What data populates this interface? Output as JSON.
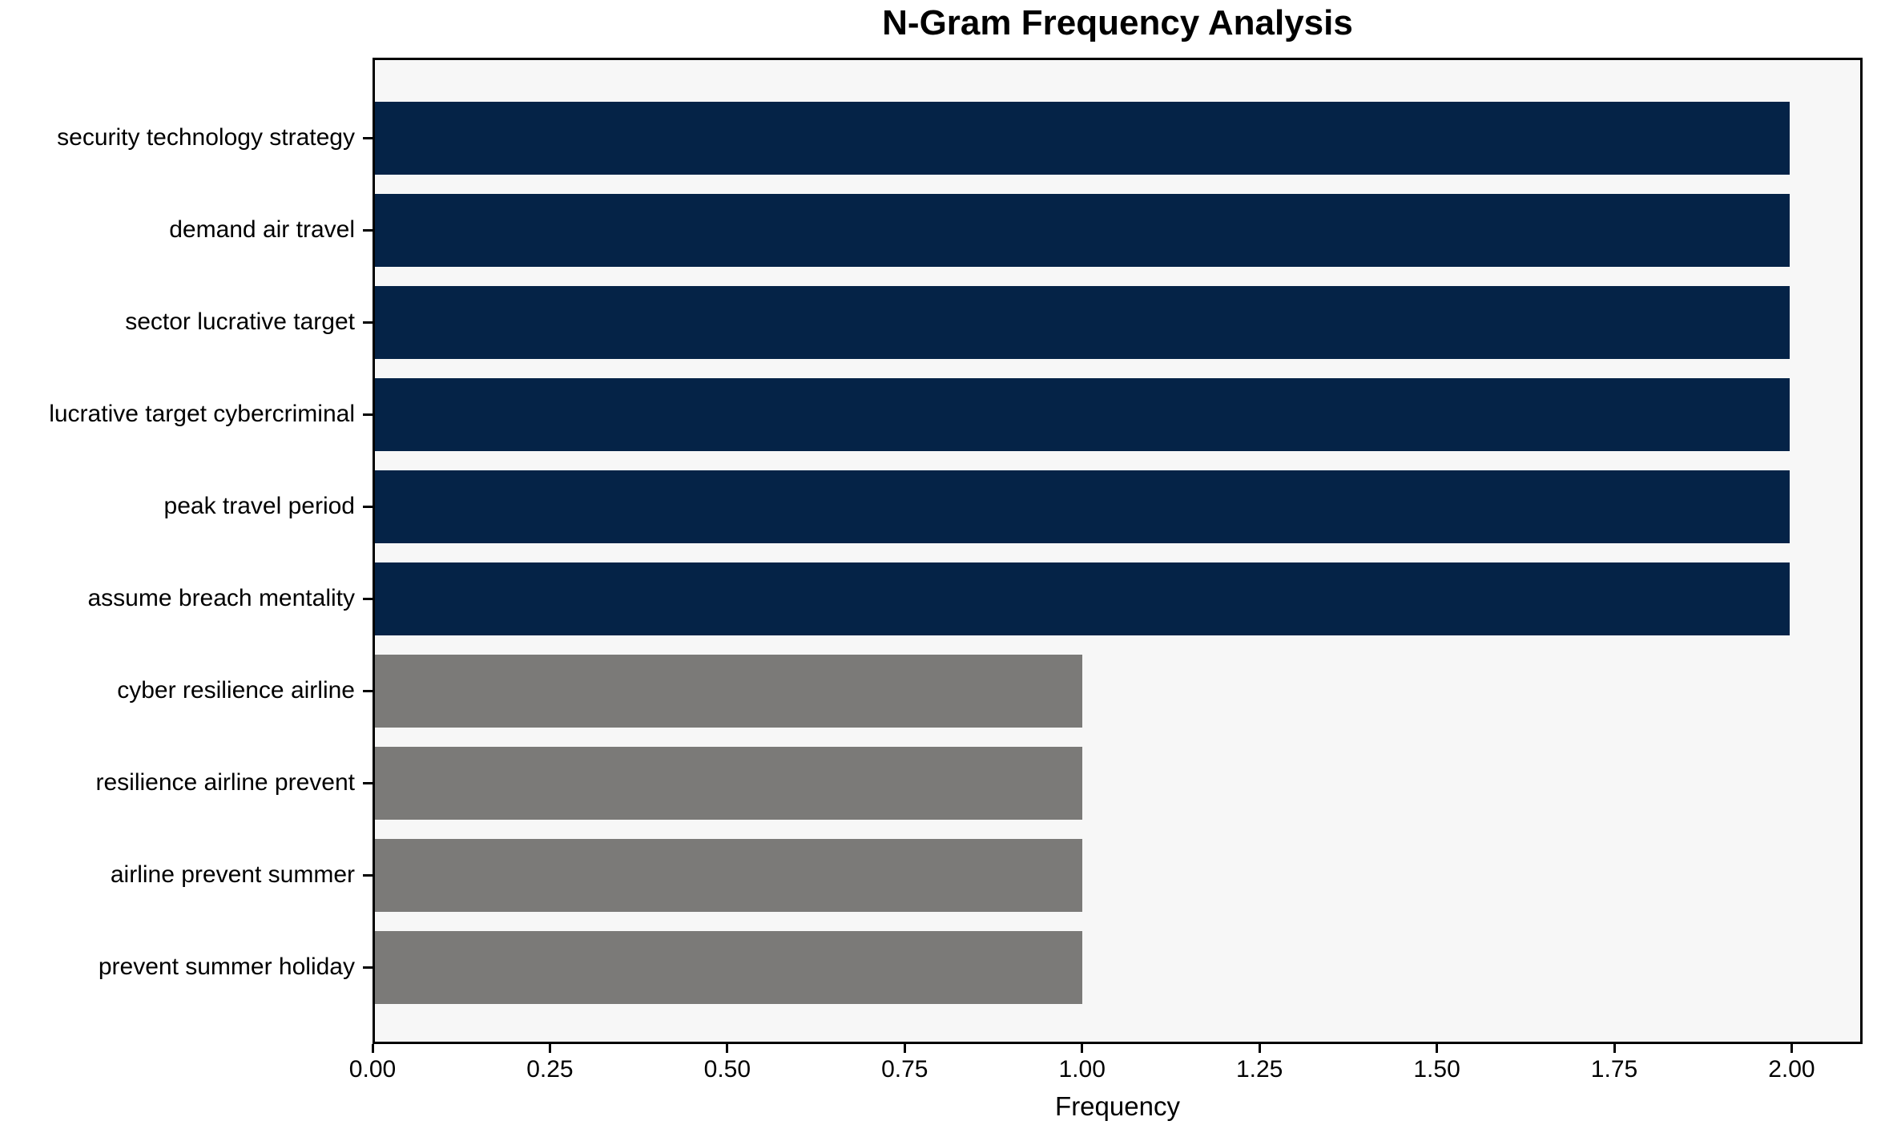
{
  "chart_data": {
    "type": "bar",
    "orientation": "horizontal",
    "title": "N-Gram Frequency Analysis",
    "xlabel": "Frequency",
    "ylabel": "",
    "categories": [
      "security technology strategy",
      "demand air travel",
      "sector lucrative target",
      "lucrative target cybercriminal",
      "peak travel period",
      "assume breach mentality",
      "cyber resilience airline",
      "resilience airline prevent",
      "airline prevent summer",
      "prevent summer holiday"
    ],
    "values": [
      2,
      2,
      2,
      2,
      2,
      2,
      1,
      1,
      1,
      1
    ],
    "bar_colors": [
      "#052347",
      "#052347",
      "#052347",
      "#052347",
      "#052347",
      "#052347",
      "#7b7a78",
      "#7b7a78",
      "#7b7a78",
      "#7b7a78"
    ],
    "xlim": [
      0,
      2.1
    ],
    "xticks": [
      {
        "value": 0.0,
        "label": "0.00"
      },
      {
        "value": 0.25,
        "label": "0.25"
      },
      {
        "value": 0.5,
        "label": "0.50"
      },
      {
        "value": 0.75,
        "label": "0.75"
      },
      {
        "value": 1.0,
        "label": "1.00"
      },
      {
        "value": 1.25,
        "label": "1.25"
      },
      {
        "value": 1.5,
        "label": "1.50"
      },
      {
        "value": 1.75,
        "label": "1.75"
      },
      {
        "value": 2.0,
        "label": "2.00"
      }
    ],
    "grid": false,
    "legend": null,
    "plot_background_color": "#f7f7f7",
    "figure_background_color": "#ffffff",
    "highlight_color": "#052347",
    "muted_color": "#7b7a78"
  }
}
